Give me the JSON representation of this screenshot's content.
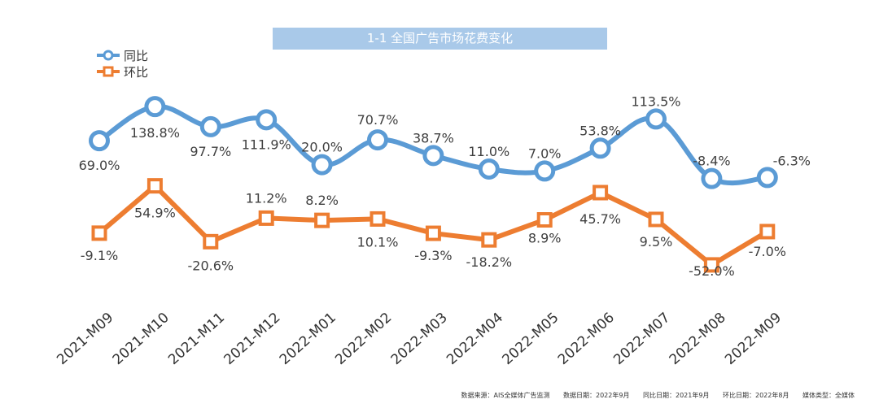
{
  "colors": {
    "yoy": "#5b9bd5",
    "mom": "#ed7d31",
    "title_bg": "#a9c9e9"
  },
  "chart_data": {
    "type": "line",
    "title": "1-1 全国广告市场花费变化",
    "categories": [
      "2021-M09",
      "2021-M10",
      "2021-M11",
      "2021-M12",
      "2022-M01",
      "2022-M02",
      "2022-M03",
      "2022-M04",
      "2022-M05",
      "2022-M06",
      "2022-M07",
      "2022-M08",
      "2022-M09"
    ],
    "series": [
      {
        "name": "同比",
        "values": [
          69.0,
          138.8,
          97.7,
          111.9,
          20.0,
          70.7,
          38.7,
          11.0,
          7.0,
          53.8,
          113.5,
          -8.4,
          -6.3
        ],
        "labels": [
          "69.0%",
          "138.8%",
          "97.7%",
          "111.9%",
          "20.0%",
          "70.7%",
          "38.7%",
          "11.0%",
          "7.0%",
          "53.8%",
          "113.5%",
          "-8.4%",
          "-6.3%"
        ]
      },
      {
        "name": "环比",
        "values": [
          -9.1,
          54.9,
          -20.6,
          11.2,
          8.2,
          10.1,
          -9.3,
          -18.2,
          8.9,
          45.7,
          9.5,
          -52.0,
          -7.0
        ],
        "labels": [
          "-9.1%",
          "54.9%",
          "-20.6%",
          "11.2%",
          "8.2%",
          "10.1%",
          "-9.3%",
          "-18.2%",
          "8.9%",
          "45.7%",
          "9.5%",
          "-52.0%",
          "-7.0%"
        ]
      }
    ],
    "legend": "top-left",
    "grid": false
  },
  "footer": {
    "source": "数据来源：AIS全媒体广告监测",
    "data_date": "数据日期：2022年9月",
    "yoy_date": "同比日期：2021年9月",
    "mom_date": "环比日期：2022年8月",
    "media_type": "媒体类型：全媒体"
  }
}
